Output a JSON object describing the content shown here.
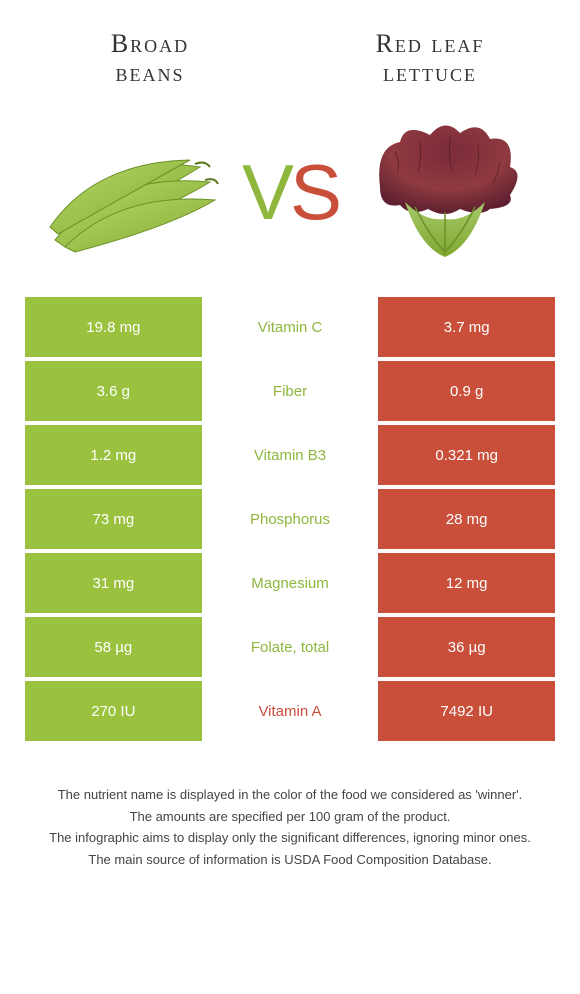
{
  "left_food": {
    "title_line1": "Broad",
    "title_line2": "beans"
  },
  "right_food": {
    "title_line1": "Red leaf",
    "title_line2": "lettuce"
  },
  "vs": {
    "v": "V",
    "s": "S"
  },
  "colors": {
    "left_bg": "#9ac23e",
    "right_bg": "#c94f3a",
    "left_text": "#8fb73e",
    "right_text": "#c94f3a"
  },
  "rows": [
    {
      "left": "19.8 mg",
      "label": "Vitamin C",
      "right": "3.7 mg",
      "winner": "left"
    },
    {
      "left": "3.6 g",
      "label": "Fiber",
      "right": "0.9 g",
      "winner": "left"
    },
    {
      "left": "1.2 mg",
      "label": "Vitamin B3",
      "right": "0.321 mg",
      "winner": "left"
    },
    {
      "left": "73 mg",
      "label": "Phosphorus",
      "right": "28 mg",
      "winner": "left"
    },
    {
      "left": "31 mg",
      "label": "Magnesium",
      "right": "12 mg",
      "winner": "left"
    },
    {
      "left": "58 µg",
      "label": "Folate, total",
      "right": "36 µg",
      "winner": "left"
    },
    {
      "left": "270 IU",
      "label": "Vitamin A",
      "right": "7492 IU",
      "winner": "right"
    }
  ],
  "footer": {
    "l1": "The nutrient name is displayed in the color of the food we considered as 'winner'.",
    "l2": "The amounts are specified per 100 gram of the product.",
    "l3": "The infographic aims to display only the significant differences, ignoring minor ones.",
    "l4": "The main source of information is USDA Food Composition Database."
  }
}
